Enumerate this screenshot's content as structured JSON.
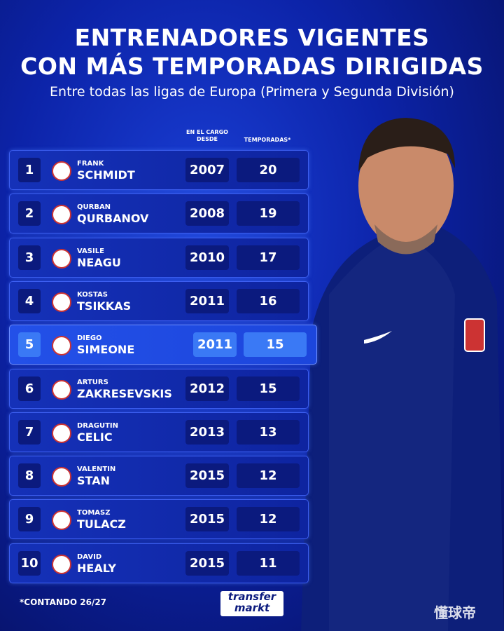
{
  "header": {
    "title_lines": [
      "ENTRENADORES VIGENTES",
      "CON MÁS TEMPORADAS DIRIGIDAS"
    ],
    "subtitle": "Entre todas las ligas de Europa (Primera y Segunda División)"
  },
  "table": {
    "columns": [
      "EN EL CARGO DESDE",
      "TEMPORADAS*"
    ],
    "rows": [
      {
        "rank": 1,
        "first_name": "FRANK",
        "last_name": "SCHMIDT",
        "since": 2007,
        "seasons": 20
      },
      {
        "rank": 2,
        "first_name": "QURBAN",
        "last_name": "QURBANOV",
        "since": 2008,
        "seasons": 19
      },
      {
        "rank": 3,
        "first_name": "VASILE",
        "last_name": "NEAGU",
        "since": 2010,
        "seasons": 17
      },
      {
        "rank": 4,
        "first_name": "KOSTAS",
        "last_name": "TSIKKAS",
        "since": 2011,
        "seasons": 16
      },
      {
        "rank": 5,
        "first_name": "DIEGO",
        "last_name": "SIMEONE",
        "since": 2011,
        "seasons": 15
      },
      {
        "rank": 6,
        "first_name": "ARTURS",
        "last_name": "ZAKRESEVSKIS",
        "since": 2012,
        "seasons": 15
      },
      {
        "rank": 7,
        "first_name": "DRAGUTIN",
        "last_name": "CELIC",
        "since": 2013,
        "seasons": 13
      },
      {
        "rank": 8,
        "first_name": "VALENTIN",
        "last_name": "STAN",
        "since": 2015,
        "seasons": 12
      },
      {
        "rank": 9,
        "first_name": "TOMASZ",
        "last_name": "TULACZ",
        "since": 2015,
        "seasons": 12
      },
      {
        "rank": 10,
        "first_name": "DAVID",
        "last_name": "HEALY",
        "since": 2015,
        "seasons": 11
      }
    ]
  },
  "footnote": "*CONTANDO 26/27",
  "logo": {
    "line1": "transfer",
    "line2": "markt"
  },
  "watermark": "懂球帝"
}
